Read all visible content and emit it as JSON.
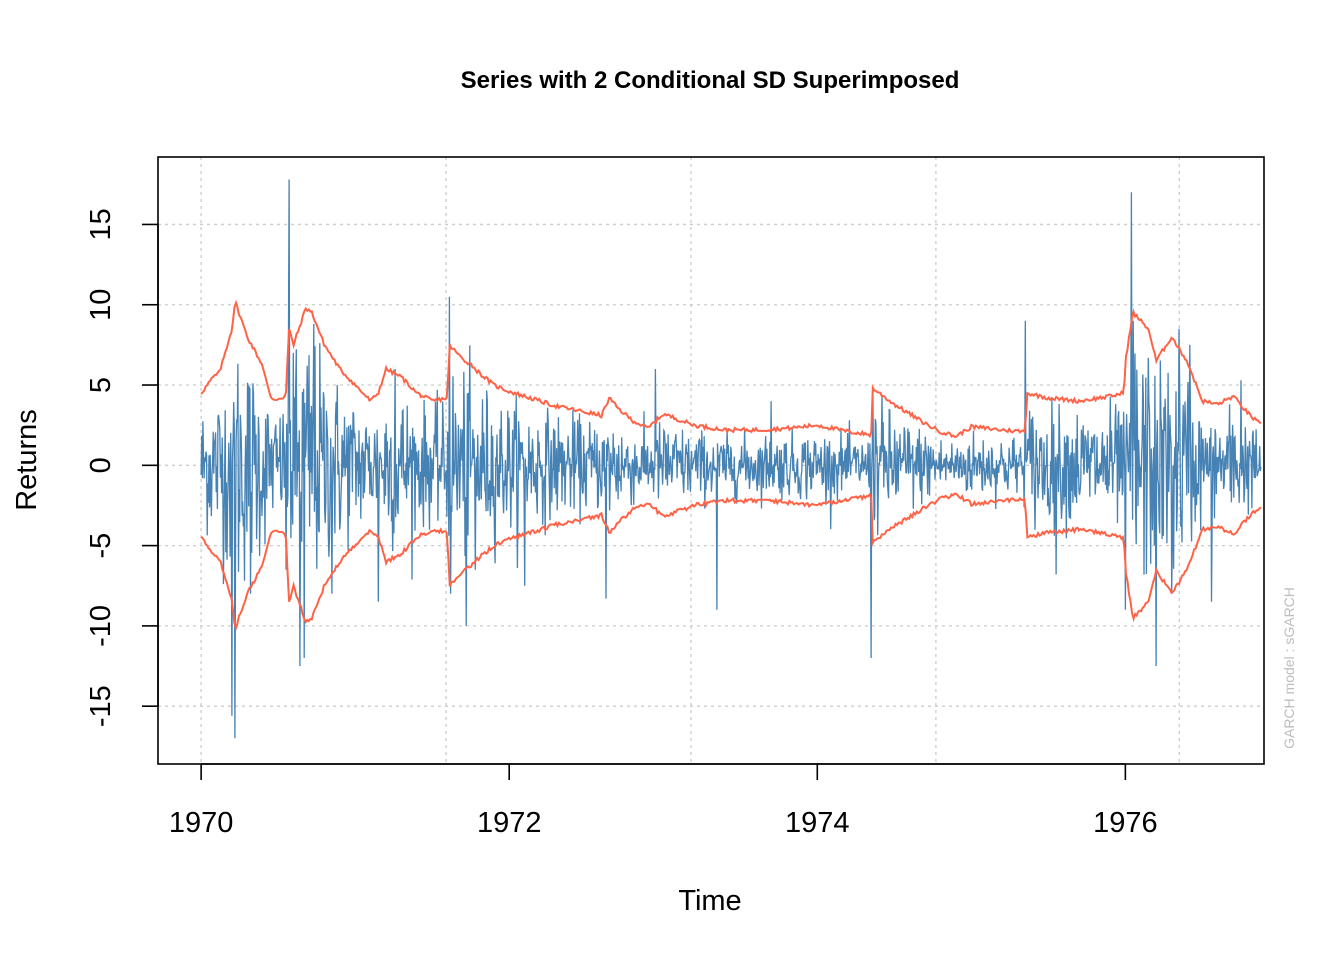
{
  "chart_data": {
    "type": "line",
    "title": "Series with 2 Conditional SD Superimposed",
    "xlabel": "Time",
    "ylabel": "Returns",
    "watermark": "GARCH model : sGARCH",
    "xlim": [
      1969.72,
      1976.9
    ],
    "ylim": [
      -18.6,
      19.2
    ],
    "x_ticks": [
      1970,
      1972,
      1974,
      1976
    ],
    "x_tick_labels": [
      "1970",
      "1972",
      "1974",
      "1976"
    ],
    "y_ticks": [
      -15,
      -10,
      -5,
      0,
      5,
      10,
      15
    ],
    "y_tick_labels": [
      "-15",
      "-10",
      "-5",
      "0",
      "5",
      "10",
      "15"
    ],
    "grid": true,
    "grid_x": [
      1970,
      1971.59,
      1973.18,
      1974.77,
      1976.35
    ],
    "grid_y": [
      -15,
      -10,
      -5,
      0,
      5,
      10,
      15
    ],
    "colors": {
      "returns": "#4682b4",
      "sd_bands": "#ff6347",
      "grid": "#cccccc"
    },
    "sd_band_keypoints": {
      "x": [
        1970.0,
        1970.08,
        1970.12,
        1970.2,
        1970.22,
        1970.3,
        1970.4,
        1970.45,
        1970.48,
        1970.55,
        1970.57,
        1970.6,
        1970.68,
        1970.72,
        1970.8,
        1970.9,
        1971.0,
        1971.1,
        1971.15,
        1971.2,
        1971.3,
        1971.4,
        1971.5,
        1971.6,
        1971.61,
        1971.7,
        1971.75,
        1971.8,
        1971.9,
        1972.0,
        1972.1,
        1972.2,
        1972.3,
        1972.4,
        1972.5,
        1972.6,
        1972.65,
        1972.7,
        1972.8,
        1972.9,
        1973.0,
        1973.2,
        1973.4,
        1973.6,
        1973.8,
        1974.0,
        1974.2,
        1974.35,
        1974.36,
        1974.5,
        1974.7,
        1974.8,
        1974.9,
        1975.0,
        1975.2,
        1975.35,
        1975.36,
        1975.5,
        1975.7,
        1975.9,
        1975.99,
        1976.0,
        1976.05,
        1976.08,
        1976.15,
        1976.2,
        1976.3,
        1976.4,
        1976.5,
        1976.6,
        1976.7,
        1976.8,
        1976.88
      ],
      "upper": [
        4.5,
        5.5,
        5.8,
        8.5,
        10.2,
        8.0,
        6.2,
        4.2,
        4.1,
        4.3,
        8.5,
        7.5,
        9.8,
        9.5,
        7.5,
        6.0,
        5.0,
        4.0,
        4.5,
        6.0,
        5.5,
        4.5,
        4.0,
        4.2,
        7.5,
        6.6,
        6.3,
        5.8,
        5.0,
        4.6,
        4.3,
        4.0,
        3.7,
        3.5,
        3.3,
        3.1,
        4.2,
        3.6,
        2.8,
        2.3,
        3.2,
        2.5,
        2.2,
        2.2,
        2.3,
        2.5,
        2.1,
        1.9,
        4.8,
        3.8,
        2.6,
        2.1,
        1.8,
        2.4,
        2.2,
        2.1,
        4.5,
        4.2,
        4.0,
        4.3,
        4.5,
        6.5,
        9.5,
        9.2,
        8.5,
        6.5,
        8.0,
        6.5,
        4.0,
        3.8,
        4.3,
        3.2,
        2.5
      ]
    },
    "returns_spikes": {
      "x": [
        1970.2,
        1970.22,
        1970.32,
        1970.55,
        1970.57,
        1970.6,
        1970.64,
        1970.67,
        1970.73,
        1970.85,
        1971.15,
        1971.26,
        1971.61,
        1971.62,
        1971.72,
        1971.78,
        1972.1,
        1972.63,
        1972.95,
        1973.35,
        1973.7,
        1974.35,
        1974.36,
        1975.35,
        1975.55,
        1976.0,
        1976.04,
        1976.05,
        1976.2,
        1976.3,
        1976.35,
        1976.42,
        1976.56,
        1976.75
      ],
      "y": [
        -15.6,
        -17.0,
        -8.0,
        -6.5,
        17.8,
        7.0,
        -12.5,
        -12.0,
        8.8,
        -8.0,
        -8.5,
        6.0,
        10.5,
        -8.0,
        -10.0,
        -6.5,
        -7.5,
        -8.3,
        6.0,
        -9.0,
        4.0,
        -12.0,
        4.5,
        9.0,
        -6.8,
        -9.0,
        17.0,
        9.0,
        -12.5,
        -8.0,
        8.5,
        7.5,
        -8.5,
        5.3
      ]
    }
  }
}
